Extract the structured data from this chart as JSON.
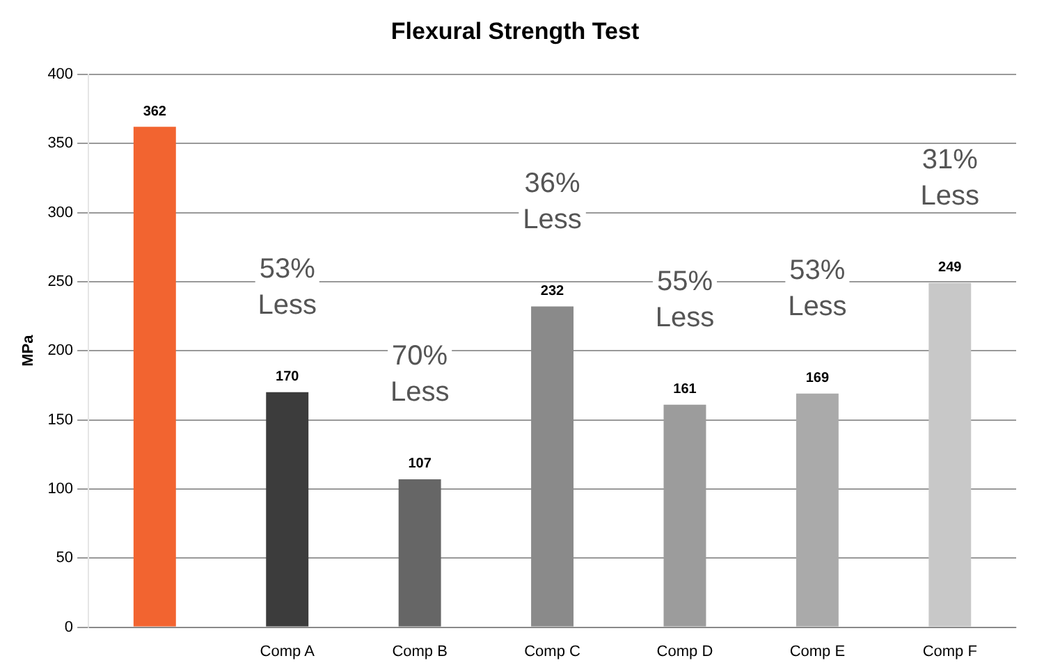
{
  "chart_data": {
    "type": "bar",
    "title": "Flexural Strength Test",
    "ylabel": "MPa",
    "categories": [
      null,
      "Comp A",
      "Comp B",
      "Comp C",
      "Comp D",
      "Comp E",
      "Comp F"
    ],
    "values": [
      362,
      170,
      107,
      232,
      161,
      169,
      249
    ],
    "colors": [
      "#f26430",
      "#3c3c3c",
      "#666666",
      "#8a8a8a",
      "#9c9c9c",
      "#aaaaaa",
      "#c8c8c8"
    ],
    "ylim": [
      0,
      400
    ],
    "yticks": [
      0,
      50,
      100,
      150,
      200,
      250,
      300,
      350,
      400
    ],
    "grid": "y",
    "legend": false,
    "data_labels": true,
    "annotations": [
      "53%\nLess",
      "70%\nLess",
      "36%\nLess",
      "55%\nLess",
      "53%\nLess",
      "31%\nLess"
    ]
  }
}
